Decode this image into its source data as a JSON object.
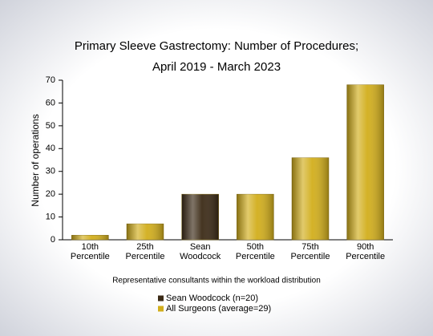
{
  "chart_data": {
    "type": "bar",
    "title": "Primary Sleeve Gastrectomy: Number of Procedures;",
    "subtitle": "April 2019 - March 2023",
    "x_label": "Representative consultants within the workload distribution",
    "y_label": "Number of operations",
    "categories": [
      [
        "10th",
        "Percentile"
      ],
      [
        "25th",
        "Percentile"
      ],
      [
        "Sean",
        "Woodcock"
      ],
      [
        "50th",
        "Percentile"
      ],
      [
        "75th",
        "Percentile"
      ],
      [
        "90th",
        "Percentile"
      ]
    ],
    "series": [
      {
        "name": "Sean Woodcock (n=20)",
        "color": "#3b2a16",
        "values": [
          null,
          null,
          20,
          null,
          null,
          null
        ]
      },
      {
        "name": "All Surgeons (average=29)",
        "color": "#d2ae1c",
        "values": [
          2,
          7,
          null,
          20,
          36,
          68
        ]
      }
    ],
    "ylim": [
      0,
      70
    ],
    "yticks": [
      0,
      10,
      20,
      30,
      40,
      50,
      60,
      70
    ],
    "grid": false
  }
}
